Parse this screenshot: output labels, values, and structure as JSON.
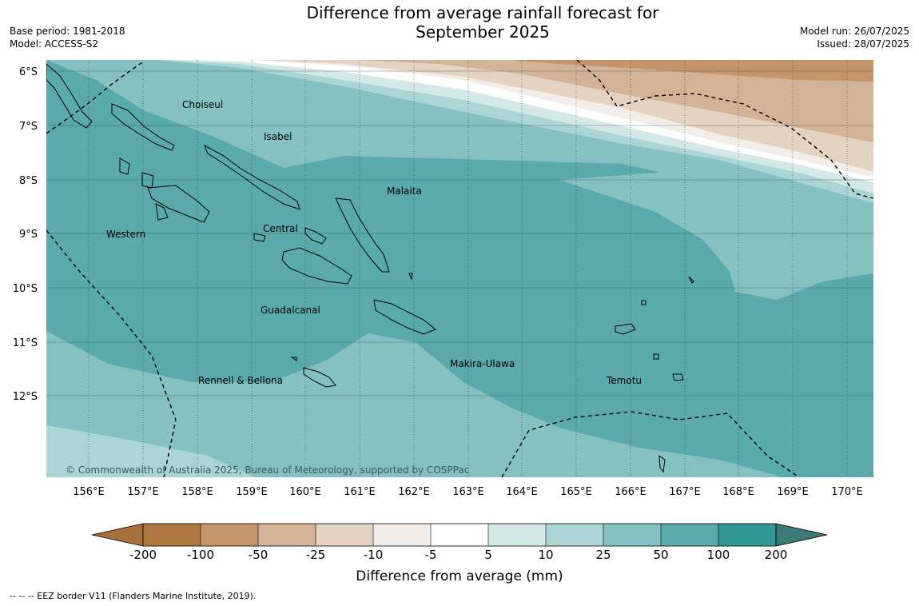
{
  "title_line1": "Difference from average rainfall forecast for",
  "title_line2": "September 2025",
  "base_period": "Base period: 1981-2018",
  "model": "Model: ACCESS-S2",
  "model_run": "Model run: 26/07/2025",
  "issued": "Issued: 28/07/2025",
  "copyright": "© Commonwealth of Australia 2025, Bureau of Meteorology, supported by COSPPac",
  "colorbar_label": "Difference from average (mm)",
  "footnote": "--  --  -- EEZ border V11 (Flanders Marine Institute, 2019).",
  "lat_labels": [
    "6°S",
    "7°S",
    "8°S",
    "9°S",
    "10°S",
    "11°S",
    "12°S"
  ],
  "lon_labels": [
    "156°E",
    "157°E",
    "158°E",
    "159°E",
    "160°E",
    "161°E",
    "162°E",
    "163°E",
    "164°E",
    "165°E",
    "166°E",
    "167°E",
    "168°E",
    "169°E",
    "170°E"
  ],
  "colorbar_ticks": [
    "-200",
    "-100",
    "-50",
    "-25",
    "-10",
    "-5",
    "5",
    "10",
    "25",
    "50",
    "100",
    "200"
  ],
  "colorbar_colors": [
    "#a8703c",
    "#ae773f",
    "#c4946b",
    "#d4b295",
    "#e4d2c2",
    "#f2ede8",
    "#ffffff",
    "#d3e8e7",
    "#acd5d5",
    "#85c1c1",
    "#5aaaab",
    "#349797",
    "#3c7a78"
  ],
  "regions": [
    "Choiseul",
    "Isabel",
    "Malaita",
    "Western",
    "Central",
    "Guadalcanal",
    "Makira-Ulawa",
    "Rennell & Bellona",
    "Temotu"
  ],
  "colors": {
    "zone_5_10": "#d3e8e7",
    "zone_10_25": "#acd5d5",
    "zone_25_50": "#85c1c1",
    "zone_50_100": "#5aaaab",
    "zone_neg_5_10": "#f2ede8",
    "zone_neg_10_25": "#e4d2c2",
    "zone_neg_25_50": "#d4b295",
    "zone_neg_50_100": "#c4946b"
  }
}
